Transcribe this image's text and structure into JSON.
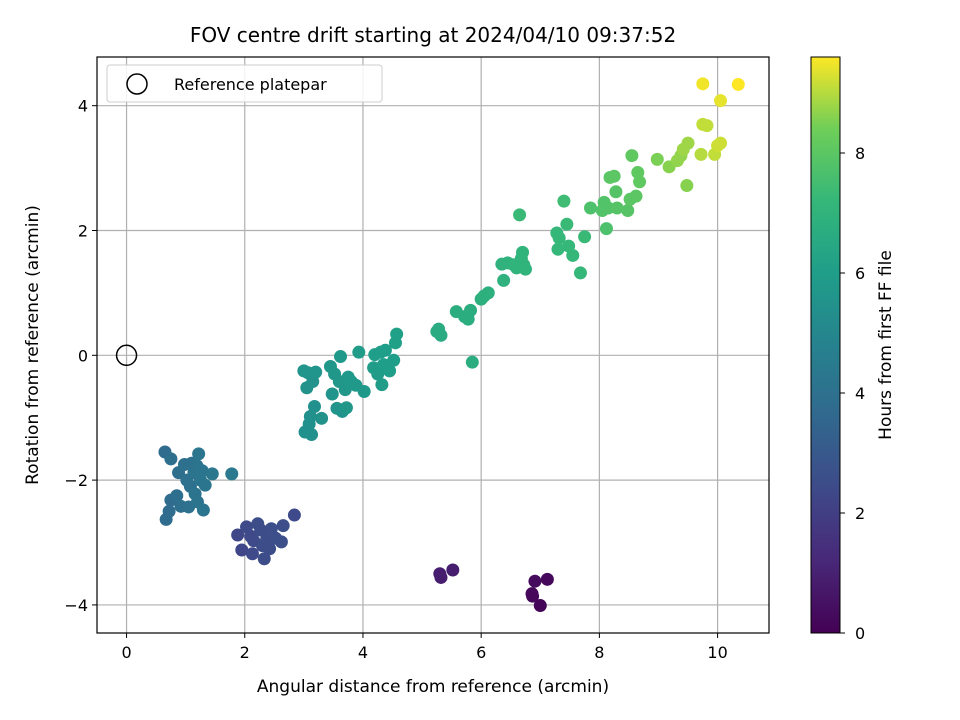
{
  "chart_data": {
    "type": "scatter",
    "title": "FOV centre drift starting at 2024/04/10 09:37:52",
    "xlabel": "Angular distance from reference (arcmin)",
    "ylabel": "Rotation from reference (arcmin)",
    "xlim": [
      -0.5,
      10.87
    ],
    "ylim": [
      -4.45,
      4.78
    ],
    "xticks": [
      0,
      2,
      4,
      6,
      8,
      10
    ],
    "yticks": [
      -4,
      -2,
      0,
      2,
      4
    ],
    "grid": true,
    "legend": {
      "placement": "top-left",
      "entries": [
        "Reference platepar"
      ]
    },
    "reference_point": {
      "x": 0,
      "y": 0,
      "marker": "open-circle"
    },
    "colorbar": {
      "label": "Hours from first FF file",
      "colormap": "viridis",
      "range": [
        0,
        9.6
      ],
      "ticks": [
        0,
        2,
        4,
        6,
        8
      ]
    },
    "series": [
      {
        "points": [
          [
            5.3,
            -3.5,
            0.9
          ],
          [
            5.32,
            -3.56,
            0.9
          ],
          [
            5.52,
            -3.44,
            0.9
          ],
          [
            6.86,
            -3.82,
            0.2
          ],
          [
            6.87,
            -3.86,
            0.2
          ],
          [
            6.91,
            -3.62,
            0.3
          ],
          [
            7.0,
            -4.01,
            0.1
          ],
          [
            7.12,
            -3.59,
            0.2
          ],
          [
            1.88,
            -2.88,
            2.3
          ],
          [
            1.95,
            -3.12,
            2.3
          ],
          [
            2.03,
            -2.75,
            2.4
          ],
          [
            2.1,
            -2.9,
            2.4
          ],
          [
            2.13,
            -3.18,
            2.4
          ],
          [
            2.15,
            -2.97,
            2.4
          ],
          [
            2.22,
            -2.7,
            2.5
          ],
          [
            2.27,
            -2.8,
            2.5
          ],
          [
            2.3,
            -3.05,
            2.5
          ],
          [
            2.33,
            -3.26,
            2.5
          ],
          [
            2.37,
            -2.95,
            2.5
          ],
          [
            2.42,
            -3.1,
            2.5
          ],
          [
            2.45,
            -2.78,
            2.6
          ],
          [
            2.52,
            -2.93,
            2.6
          ],
          [
            2.62,
            -2.99,
            2.6
          ],
          [
            2.65,
            -2.73,
            2.6
          ],
          [
            2.84,
            -2.56,
            2.4
          ],
          [
            0.65,
            -1.55,
            3.8
          ],
          [
            0.67,
            -2.63,
            3.8
          ],
          [
            0.72,
            -2.5,
            3.8
          ],
          [
            0.75,
            -2.32,
            3.8
          ],
          [
            0.75,
            -1.66,
            3.9
          ],
          [
            0.85,
            -2.25,
            3.9
          ],
          [
            0.88,
            -1.88,
            3.9
          ],
          [
            0.92,
            -2.42,
            3.9
          ],
          [
            0.98,
            -1.75,
            4.0
          ],
          [
            1.02,
            -2.0,
            4.0
          ],
          [
            1.05,
            -2.43,
            4.0
          ],
          [
            1.08,
            -2.1,
            4.0
          ],
          [
            1.1,
            -1.73,
            4.0
          ],
          [
            1.14,
            -1.88,
            4.1
          ],
          [
            1.16,
            -2.22,
            4.1
          ],
          [
            1.19,
            -1.77,
            4.1
          ],
          [
            1.2,
            -2.35,
            4.1
          ],
          [
            1.22,
            -1.58,
            4.2
          ],
          [
            1.25,
            -2.0,
            4.2
          ],
          [
            1.28,
            -1.85,
            4.2
          ],
          [
            1.3,
            -2.48,
            4.2
          ],
          [
            1.33,
            -2.08,
            4.2
          ],
          [
            1.45,
            -1.9,
            4.3
          ],
          [
            1.78,
            -1.9,
            4.4
          ],
          [
            3.0,
            -0.25,
            5.6
          ],
          [
            3.02,
            -1.23,
            5.4
          ],
          [
            3.05,
            -0.52,
            5.5
          ],
          [
            3.07,
            -0.28,
            5.6
          ],
          [
            3.09,
            -1.1,
            5.4
          ],
          [
            3.11,
            -0.98,
            5.4
          ],
          [
            3.13,
            -1.27,
            5.4
          ],
          [
            3.15,
            -0.42,
            5.5
          ],
          [
            3.18,
            -0.82,
            5.4
          ],
          [
            3.2,
            -0.27,
            5.6
          ],
          [
            3.3,
            -1.01,
            5.5
          ],
          [
            3.45,
            -0.18,
            5.7
          ],
          [
            3.48,
            -0.62,
            5.6
          ],
          [
            3.52,
            -0.3,
            5.7
          ],
          [
            3.56,
            -0.85,
            5.6
          ],
          [
            3.6,
            -0.42,
            5.7
          ],
          [
            3.62,
            -0.02,
            5.8
          ],
          [
            3.65,
            -0.9,
            5.6
          ],
          [
            3.7,
            -0.55,
            5.7
          ],
          [
            3.72,
            -0.84,
            5.7
          ],
          [
            3.75,
            -0.35,
            5.8
          ],
          [
            3.8,
            -0.42,
            5.8
          ],
          [
            3.88,
            -0.48,
            5.8
          ],
          [
            3.93,
            0.05,
            5.9
          ],
          [
            4.02,
            -0.58,
            5.8
          ],
          [
            4.18,
            -0.2,
            5.9
          ],
          [
            4.2,
            0.01,
            6.0
          ],
          [
            4.25,
            -0.3,
            5.9
          ],
          [
            4.3,
            0.05,
            6.0
          ],
          [
            4.32,
            -0.47,
            5.9
          ],
          [
            4.35,
            -0.15,
            6.0
          ],
          [
            4.38,
            0.08,
            6.0
          ],
          [
            4.45,
            -0.25,
            6.0
          ],
          [
            4.52,
            -0.08,
            6.0
          ],
          [
            4.55,
            0.2,
            6.1
          ],
          [
            4.57,
            0.34,
            6.1
          ],
          [
            5.25,
            0.38,
            6.6
          ],
          [
            5.28,
            0.42,
            6.6
          ],
          [
            5.32,
            0.32,
            6.6
          ],
          [
            5.58,
            0.7,
            6.7
          ],
          [
            5.72,
            0.62,
            6.7
          ],
          [
            5.78,
            0.58,
            6.7
          ],
          [
            5.82,
            0.72,
            6.7
          ],
          [
            5.85,
            -0.11,
            6.7
          ],
          [
            6.0,
            0.9,
            6.8
          ],
          [
            6.05,
            0.95,
            6.8
          ],
          [
            6.12,
            1.0,
            6.8
          ],
          [
            6.35,
            1.46,
            6.9
          ],
          [
            6.38,
            1.2,
            6.9
          ],
          [
            6.45,
            1.48,
            6.9
          ],
          [
            6.55,
            1.45,
            7.0
          ],
          [
            6.6,
            1.4,
            7.0
          ],
          [
            6.65,
            2.25,
            7.3
          ],
          [
            6.68,
            1.55,
            7.0
          ],
          [
            6.7,
            1.65,
            7.0
          ],
          [
            6.72,
            1.45,
            7.0
          ],
          [
            6.75,
            1.38,
            7.0
          ],
          [
            7.28,
            1.96,
            7.2
          ],
          [
            7.3,
            1.7,
            7.2
          ],
          [
            7.32,
            1.88,
            7.2
          ],
          [
            7.4,
            2.47,
            7.4
          ],
          [
            7.45,
            2.1,
            7.3
          ],
          [
            7.48,
            1.75,
            7.2
          ],
          [
            7.55,
            1.6,
            7.2
          ],
          [
            7.68,
            1.32,
            7.2
          ],
          [
            7.75,
            1.9,
            7.3
          ],
          [
            7.85,
            2.36,
            7.7
          ],
          [
            8.05,
            2.32,
            7.8
          ],
          [
            8.08,
            2.45,
            7.8
          ],
          [
            8.12,
            2.03,
            7.7
          ],
          [
            8.15,
            2.36,
            7.8
          ],
          [
            8.18,
            2.85,
            8.0
          ],
          [
            8.25,
            2.87,
            8.0
          ],
          [
            8.28,
            2.62,
            7.9
          ],
          [
            8.3,
            2.36,
            7.9
          ],
          [
            8.48,
            2.32,
            7.9
          ],
          [
            8.52,
            2.5,
            8.0
          ],
          [
            8.55,
            3.2,
            8.1
          ],
          [
            8.62,
            2.55,
            8.0
          ],
          [
            8.65,
            2.93,
            8.1
          ],
          [
            8.68,
            2.78,
            8.1
          ],
          [
            8.98,
            3.14,
            8.5
          ],
          [
            9.18,
            3.02,
            8.6
          ],
          [
            9.32,
            3.12,
            8.7
          ],
          [
            9.38,
            3.2,
            8.7
          ],
          [
            9.42,
            3.3,
            8.8
          ],
          [
            9.48,
            2.72,
            8.6
          ],
          [
            9.5,
            3.4,
            8.8
          ],
          [
            9.72,
            3.22,
            9.0
          ],
          [
            9.75,
            3.7,
            9.1
          ],
          [
            9.82,
            3.68,
            9.1
          ],
          [
            9.95,
            3.22,
            9.1
          ],
          [
            10.0,
            3.36,
            9.2
          ],
          [
            10.05,
            3.4,
            9.2
          ],
          [
            9.75,
            4.35,
            9.5
          ],
          [
            10.05,
            4.08,
            9.4
          ],
          [
            10.35,
            4.34,
            9.6
          ]
        ]
      }
    ]
  }
}
